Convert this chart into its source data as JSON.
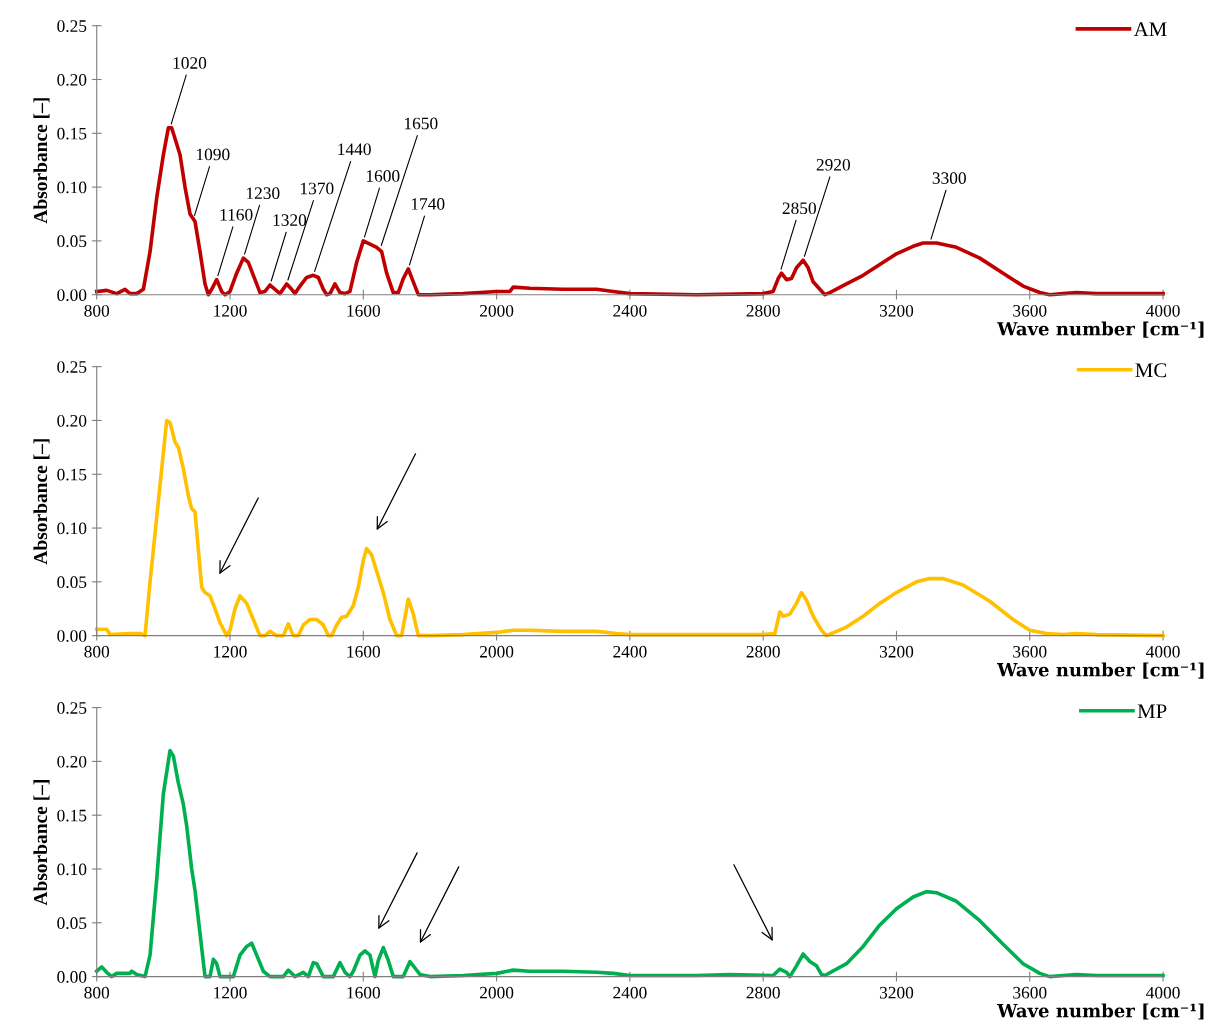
{
  "chart_data": [
    {
      "type": "line",
      "xlabel": "Wave number [cm⁻¹]",
      "ylabel": "Absorbance [–]",
      "xlim": [
        800,
        4000
      ],
      "xticks": [
        800,
        1200,
        1600,
        2000,
        2400,
        2800,
        3200,
        3600,
        4000
      ],
      "ylim": [
        0,
        0.25
      ],
      "yticks": [
        {
          "value": 0,
          "label": "0.00"
        },
        {
          "value": 0.05,
          "label": "0.05"
        },
        {
          "value": 0.1,
          "label": "0.10"
        },
        {
          "value": 0.15,
          "label": "0.15"
        },
        {
          "value": 0.2,
          "label": "0.20"
        },
        {
          "value": 0.25,
          "label": "0.25"
        }
      ],
      "grid": false,
      "legend": "top right",
      "line_style": "solid",
      "marker": "none",
      "series": [
        {
          "name": "AM",
          "color": "#c00000",
          "x": [
            800,
            830,
            860,
            885,
            900,
            920,
            940,
            960,
            980,
            1000,
            1015,
            1025,
            1040,
            1050,
            1065,
            1080,
            1095,
            1110,
            1125,
            1135,
            1145,
            1160,
            1175,
            1185,
            1200,
            1220,
            1240,
            1255,
            1270,
            1290,
            1305,
            1320,
            1335,
            1350,
            1370,
            1385,
            1395,
            1410,
            1430,
            1450,
            1465,
            1480,
            1490,
            1500,
            1515,
            1530,
            1545,
            1560,
            1580,
            1600,
            1620,
            1640,
            1655,
            1670,
            1690,
            1705,
            1720,
            1735,
            1750,
            1765,
            1800,
            1900,
            2000,
            2040,
            2050,
            2100,
            2200,
            2300,
            2350,
            2400,
            2600,
            2800,
            2830,
            2845,
            2855,
            2870,
            2885,
            2900,
            2920,
            2935,
            2950,
            2970,
            2985,
            3000,
            3050,
            3100,
            3150,
            3200,
            3250,
            3280,
            3320,
            3380,
            3450,
            3520,
            3580,
            3630,
            3660,
            3700,
            3740,
            3800,
            4000
          ],
          "values": [
            0.003,
            0.004,
            0.001,
            0.005,
            0.001,
            0.001,
            0.005,
            0.04,
            0.09,
            0.13,
            0.155,
            0.155,
            0.14,
            0.13,
            0.1,
            0.075,
            0.068,
            0.04,
            0.01,
            0.0,
            0.005,
            0.014,
            0.003,
            0.0,
            0.003,
            0.02,
            0.034,
            0.03,
            0.018,
            0.002,
            0.003,
            0.009,
            0.005,
            0.001,
            0.01,
            0.005,
            0.001,
            0.008,
            0.016,
            0.018,
            0.016,
            0.005,
            0.0,
            0.001,
            0.01,
            0.002,
            0.001,
            0.003,
            0.03,
            0.05,
            0.047,
            0.044,
            0.04,
            0.02,
            0.002,
            0.002,
            0.015,
            0.024,
            0.012,
            0.0,
            0.0,
            0.001,
            0.003,
            0.003,
            0.007,
            0.006,
            0.005,
            0.005,
            0.003,
            0.001,
            0.0,
            0.001,
            0.003,
            0.015,
            0.02,
            0.014,
            0.015,
            0.025,
            0.032,
            0.025,
            0.012,
            0.005,
            0.0,
            0.002,
            0.01,
            0.018,
            0.028,
            0.038,
            0.045,
            0.048,
            0.048,
            0.044,
            0.034,
            0.02,
            0.008,
            0.002,
            0.0,
            0.001,
            0.002,
            0.001,
            0.001
          ]
        }
      ],
      "annotations": [
        {
          "text": "1020",
          "x": 1020,
          "y": 0.155
        },
        {
          "text": "1090",
          "x": 1090,
          "y": 0.07
        },
        {
          "text": "1160",
          "x": 1160,
          "y": 0.014
        },
        {
          "text": "1230",
          "x": 1240,
          "y": 0.034
        },
        {
          "text": "1320",
          "x": 1320,
          "y": 0.009
        },
        {
          "text": "1370",
          "x": 1370,
          "y": 0.01
        },
        {
          "text": "1440",
          "x": 1450,
          "y": 0.018
        },
        {
          "text": "1600",
          "x": 1600,
          "y": 0.05
        },
        {
          "text": "1650",
          "x": 1650,
          "y": 0.042
        },
        {
          "text": "1740",
          "x": 1735,
          "y": 0.024
        },
        {
          "text": "2850",
          "x": 2850,
          "y": 0.02
        },
        {
          "text": "2920",
          "x": 2920,
          "y": 0.032
        },
        {
          "text": "3300",
          "x": 3300,
          "y": 0.048
        }
      ]
    },
    {
      "type": "line",
      "xlabel": "Wave number [cm⁻¹]",
      "ylabel": "Absorbance [–]",
      "xlim": [
        800,
        4000
      ],
      "xticks": [
        800,
        1200,
        1600,
        2000,
        2400,
        2800,
        3200,
        3600,
        4000
      ],
      "ylim": [
        0,
        0.25
      ],
      "yticks": [
        {
          "value": 0,
          "label": "0.00"
        },
        {
          "value": 0.05,
          "label": "0.05"
        },
        {
          "value": 0.1,
          "label": "0.10"
        },
        {
          "value": 0.15,
          "label": "0.15"
        },
        {
          "value": 0.2,
          "label": "0.20"
        },
        {
          "value": 0.25,
          "label": "0.25"
        }
      ],
      "grid": false,
      "legend": "top right",
      "line_style": "solid",
      "marker": "none",
      "series": [
        {
          "name": "MC",
          "color": "#ffc000",
          "x": [
            800,
            830,
            840,
            900,
            930,
            945,
            960,
            990,
            1010,
            1020,
            1035,
            1045,
            1060,
            1075,
            1085,
            1095,
            1105,
            1115,
            1125,
            1140,
            1155,
            1170,
            1190,
            1200,
            1215,
            1230,
            1250,
            1270,
            1290,
            1305,
            1320,
            1340,
            1360,
            1375,
            1390,
            1405,
            1420,
            1440,
            1460,
            1480,
            1495,
            1505,
            1520,
            1535,
            1550,
            1570,
            1585,
            1600,
            1610,
            1625,
            1645,
            1660,
            1680,
            1700,
            1715,
            1735,
            1750,
            1765,
            1800,
            1900,
            2000,
            2050,
            2100,
            2200,
            2300,
            2360,
            2400,
            2800,
            2835,
            2850,
            2860,
            2880,
            2900,
            2915,
            2930,
            2950,
            2975,
            2990,
            3050,
            3100,
            3150,
            3200,
            3260,
            3300,
            3340,
            3400,
            3480,
            3550,
            3600,
            3650,
            3700,
            3740,
            3800,
            4000
          ],
          "values": [
            0.006,
            0.006,
            0.001,
            0.002,
            0.002,
            0.0,
            0.05,
            0.14,
            0.2,
            0.198,
            0.18,
            0.175,
            0.155,
            0.13,
            0.118,
            0.115,
            0.08,
            0.045,
            0.04,
            0.037,
            0.025,
            0.012,
            0.0,
            0.005,
            0.025,
            0.037,
            0.03,
            0.015,
            0.0,
            0.0,
            0.004,
            0.0,
            0.0,
            0.011,
            0.0,
            0.0,
            0.01,
            0.015,
            0.015,
            0.01,
            0.0,
            0.0,
            0.01,
            0.017,
            0.018,
            0.028,
            0.045,
            0.07,
            0.081,
            0.075,
            0.055,
            0.04,
            0.015,
            0.0,
            0.0,
            0.034,
            0.02,
            0.0,
            0.0,
            0.001,
            0.003,
            0.005,
            0.005,
            0.004,
            0.004,
            0.002,
            0.001,
            0.001,
            0.002,
            0.022,
            0.018,
            0.02,
            0.03,
            0.04,
            0.033,
            0.018,
            0.005,
            0.0,
            0.008,
            0.018,
            0.03,
            0.04,
            0.05,
            0.053,
            0.053,
            0.047,
            0.032,
            0.015,
            0.005,
            0.002,
            0.001,
            0.002,
            0.001,
            0.0
          ]
        }
      ]
    },
    {
      "type": "line",
      "xlabel": "Wave number [cm⁻¹]",
      "ylabel": "Absorbance [–]",
      "xlim": [
        800,
        4000
      ],
      "xticks": [
        800,
        1200,
        1600,
        2000,
        2400,
        2800,
        3200,
        3600,
        4000
      ],
      "ylim": [
        0,
        0.25
      ],
      "yticks": [
        {
          "value": 0,
          "label": "0.00"
        },
        {
          "value": 0.05,
          "label": "0.05"
        },
        {
          "value": 0.1,
          "label": "0.10"
        },
        {
          "value": 0.15,
          "label": "0.15"
        },
        {
          "value": 0.2,
          "label": "0.20"
        },
        {
          "value": 0.25,
          "label": "0.25"
        }
      ],
      "grid": false,
      "legend": "top right",
      "line_style": "solid",
      "marker": "none",
      "series": [
        {
          "name": "MP",
          "color": "#00b050",
          "x": [
            800,
            815,
            830,
            845,
            860,
            900,
            905,
            920,
            945,
            960,
            980,
            1000,
            1020,
            1030,
            1045,
            1060,
            1070,
            1085,
            1095,
            1110,
            1125,
            1140,
            1150,
            1160,
            1170,
            1190,
            1210,
            1230,
            1250,
            1265,
            1280,
            1300,
            1320,
            1360,
            1375,
            1395,
            1420,
            1435,
            1450,
            1460,
            1480,
            1510,
            1530,
            1545,
            1560,
            1570,
            1590,
            1605,
            1620,
            1635,
            1645,
            1660,
            1675,
            1690,
            1720,
            1740,
            1755,
            1770,
            1800,
            1900,
            2000,
            2050,
            2100,
            2200,
            2300,
            2350,
            2400,
            2600,
            2700,
            2830,
            2850,
            2870,
            2880,
            2900,
            2920,
            2940,
            2960,
            2975,
            2985,
            3050,
            3100,
            3150,
            3200,
            3250,
            3290,
            3320,
            3380,
            3450,
            3520,
            3580,
            3630,
            3660,
            3700,
            3740,
            3800,
            4000
          ],
          "values": [
            0.005,
            0.009,
            0.004,
            0.0,
            0.003,
            0.003,
            0.005,
            0.002,
            0.0,
            0.02,
            0.09,
            0.17,
            0.21,
            0.205,
            0.18,
            0.16,
            0.14,
            0.1,
            0.08,
            0.04,
            0.0,
            0.0,
            0.016,
            0.012,
            0.0,
            0.0,
            0.0,
            0.02,
            0.028,
            0.031,
            0.02,
            0.005,
            0.0,
            0.0,
            0.006,
            0.0,
            0.004,
            0.0,
            0.013,
            0.012,
            0.0,
            0.0,
            0.013,
            0.004,
            0.0,
            0.005,
            0.02,
            0.024,
            0.02,
            0.0,
            0.015,
            0.027,
            0.015,
            0.0,
            0.0,
            0.014,
            0.008,
            0.002,
            0.0,
            0.001,
            0.003,
            0.006,
            0.005,
            0.005,
            0.004,
            0.003,
            0.001,
            0.001,
            0.002,
            0.001,
            0.007,
            0.004,
            0.0,
            0.01,
            0.021,
            0.014,
            0.01,
            0.002,
            0.001,
            0.012,
            0.028,
            0.048,
            0.063,
            0.074,
            0.079,
            0.078,
            0.07,
            0.052,
            0.03,
            0.012,
            0.003,
            0.0,
            0.001,
            0.002,
            0.001,
            0.001
          ]
        }
      ]
    }
  ]
}
